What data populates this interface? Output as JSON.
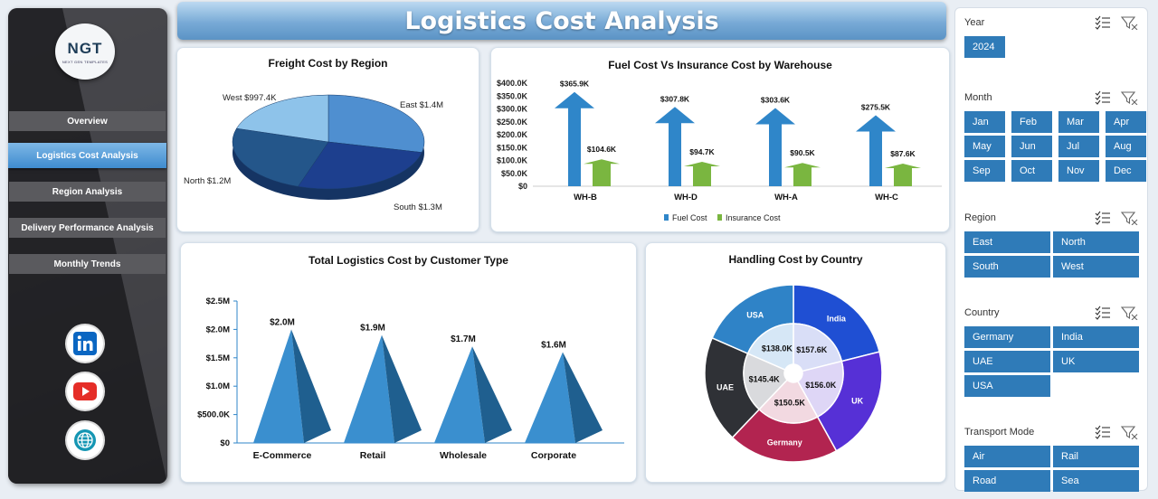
{
  "app_title": "Logistics Cost Analysis",
  "logo": {
    "mark": "NGT",
    "tagline": "NEXT GEN TEMPLATES"
  },
  "nav": [
    {
      "label": "Overview",
      "active": false
    },
    {
      "label": "Logistics Cost Analysis",
      "active": true
    },
    {
      "label": "Region Analysis",
      "active": false
    },
    {
      "label": "Delivery Performance Analysis",
      "active": false
    },
    {
      "label": "Monthly Trends",
      "active": false
    }
  ],
  "social": [
    "linkedin-icon",
    "youtube-icon",
    "globe-icon"
  ],
  "charts": {
    "freight": {
      "title": "Freight Cost by Region"
    },
    "fuel": {
      "title": "Fuel Cost Vs Insurance Cost by Warehouse",
      "legend_fuel": "Fuel Cost",
      "legend_ins": "Insurance Cost"
    },
    "customer": {
      "title": "Total Logistics Cost by Customer Type"
    },
    "handling": {
      "title": "Handling Cost by Country"
    }
  },
  "chart_data": [
    {
      "type": "pie",
      "title": "Freight Cost by Region",
      "categories": [
        "East",
        "South",
        "North",
        "West"
      ],
      "values": [
        1.4,
        1.3,
        1.2,
        0.9974
      ],
      "data_labels": [
        "East $1.4M",
        "South $1.3M",
        "North $1.2M",
        "West $997.4K"
      ],
      "colors": [
        "#4f8fd0",
        "#1d3f8e",
        "#24568a",
        "#8ec3ea"
      ]
    },
    {
      "type": "bar",
      "title": "Fuel Cost Vs Insurance Cost by Warehouse",
      "categories": [
        "WH-B",
        "WH-D",
        "WH-A",
        "WH-C"
      ],
      "series": [
        {
          "name": "Fuel Cost",
          "values": [
            365.9,
            307.8,
            303.6,
            275.5
          ],
          "labels": [
            "$365.9K",
            "$307.8K",
            "$303.6K",
            "$275.5K"
          ],
          "color": "#2f86c9"
        },
        {
          "name": "Insurance Cost",
          "values": [
            104.6,
            94.7,
            90.5,
            87.6
          ],
          "labels": [
            "$104.6K",
            "$94.7K",
            "$90.5K",
            "$87.6K"
          ],
          "color": "#7ab640"
        }
      ],
      "ylim": [
        0,
        400
      ],
      "yticks": [
        "$0",
        "$50.0K",
        "$100.0K",
        "$150.0K",
        "$200.0K",
        "$250.0K",
        "$300.0K",
        "$350.0K",
        "$400.0K"
      ],
      "legend": "bottom"
    },
    {
      "type": "bar",
      "title": "Total Logistics Cost by Customer Type",
      "categories": [
        "E-Commerce",
        "Retail",
        "Wholesale",
        "Corporate"
      ],
      "values": [
        2.0,
        1.9,
        1.7,
        1.6
      ],
      "data_labels": [
        "$2.0M",
        "$1.9M",
        "$1.7M",
        "$1.6M"
      ],
      "ylim": [
        0,
        2.5
      ],
      "yticks": [
        "$0",
        "$500.0K",
        "$1.0M",
        "$1.5M",
        "$2.0M",
        "$2.5M"
      ],
      "color": "#3a8fcf"
    },
    {
      "type": "pie",
      "title": "Handling Cost by Country",
      "categories": [
        "India",
        "UK",
        "Germany",
        "UAE",
        "USA"
      ],
      "values": [
        157.6,
        156.0,
        150.5,
        145.4,
        138.0
      ],
      "data_labels": [
        "$157.6K",
        "$156.0K",
        "$150.5K",
        "$145.4K",
        "$138.0K"
      ],
      "colors": [
        "#1f4fd3",
        "#5630d6",
        "#b22450",
        "#2f3136",
        "#2f83c7"
      ]
    }
  ],
  "filters": [
    {
      "title": "Year",
      "items": [
        "2024"
      ],
      "cols": 1
    },
    {
      "title": "Month",
      "items": [
        "Jan",
        "Feb",
        "Mar",
        "Apr",
        "May",
        "Jun",
        "Jul",
        "Aug",
        "Sep",
        "Oct",
        "Nov",
        "Dec"
      ],
      "cols": 4
    },
    {
      "title": "Region",
      "items": [
        "East",
        "North",
        "South",
        "West"
      ],
      "cols": 2
    },
    {
      "title": "Country",
      "items": [
        "Germany",
        "India",
        "UAE",
        "UK",
        "USA"
      ],
      "cols": 2
    },
    {
      "title": "Transport Mode",
      "items": [
        "Air",
        "Rail",
        "Road",
        "Sea"
      ],
      "cols": 2
    }
  ],
  "filter_icons": [
    "multi-select-icon",
    "clear-filter-icon"
  ]
}
